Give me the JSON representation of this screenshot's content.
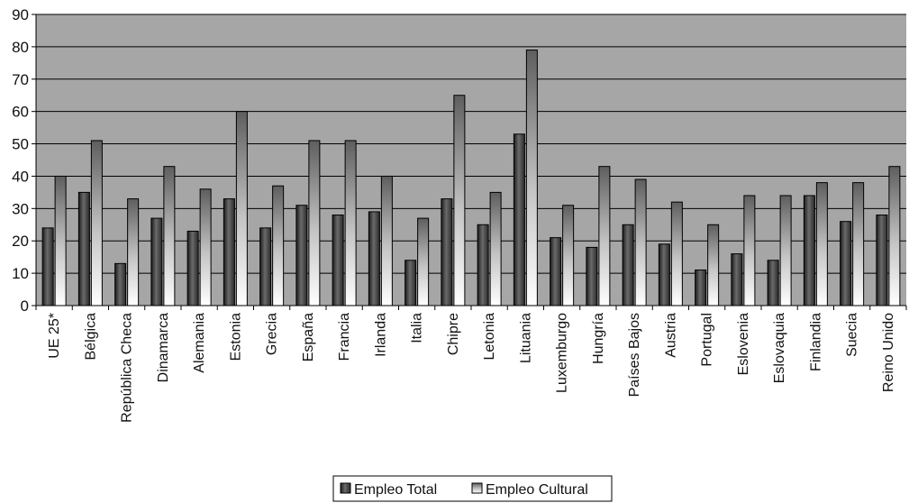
{
  "chart_data": {
    "type": "bar",
    "title": "",
    "xlabel": "",
    "ylabel": "",
    "ylim": [
      0,
      90
    ],
    "yticks": [
      0,
      10,
      20,
      30,
      40,
      50,
      60,
      70,
      80,
      90
    ],
    "grid": true,
    "legend_position": "bottom-center",
    "categories": [
      "UE 25*",
      "Bélgica",
      "República Checa",
      "Dinamarca",
      "Alemania",
      "Estonia",
      "Grecia",
      "España",
      "Francia",
      "Irlanda",
      "Italia",
      "Chipre",
      "Letonia",
      "Lituania",
      "Luxemburgo",
      "Hungría",
      "Países Bajos",
      "Austria",
      "Portugal",
      "Eslovenia",
      "Eslovaquia",
      "Finlandia",
      "Suecia",
      "Reino Unido"
    ],
    "series": [
      {
        "name": "Empleo Total",
        "color": "#3a3a3a",
        "values": [
          24,
          35,
          13,
          27,
          23,
          33,
          24,
          31,
          28,
          29,
          14,
          33,
          25,
          53,
          21,
          18,
          25,
          19,
          11,
          16,
          14,
          34,
          26,
          28
        ]
      },
      {
        "name": "Empleo Cultural",
        "color": "#e8e8e8",
        "values": [
          40,
          51,
          33,
          43,
          36,
          60,
          37,
          51,
          51,
          40,
          27,
          65,
          35,
          79,
          31,
          43,
          39,
          32,
          25,
          34,
          34,
          38,
          38,
          43
        ]
      }
    ],
    "plot_background": "#a6a6a6"
  }
}
